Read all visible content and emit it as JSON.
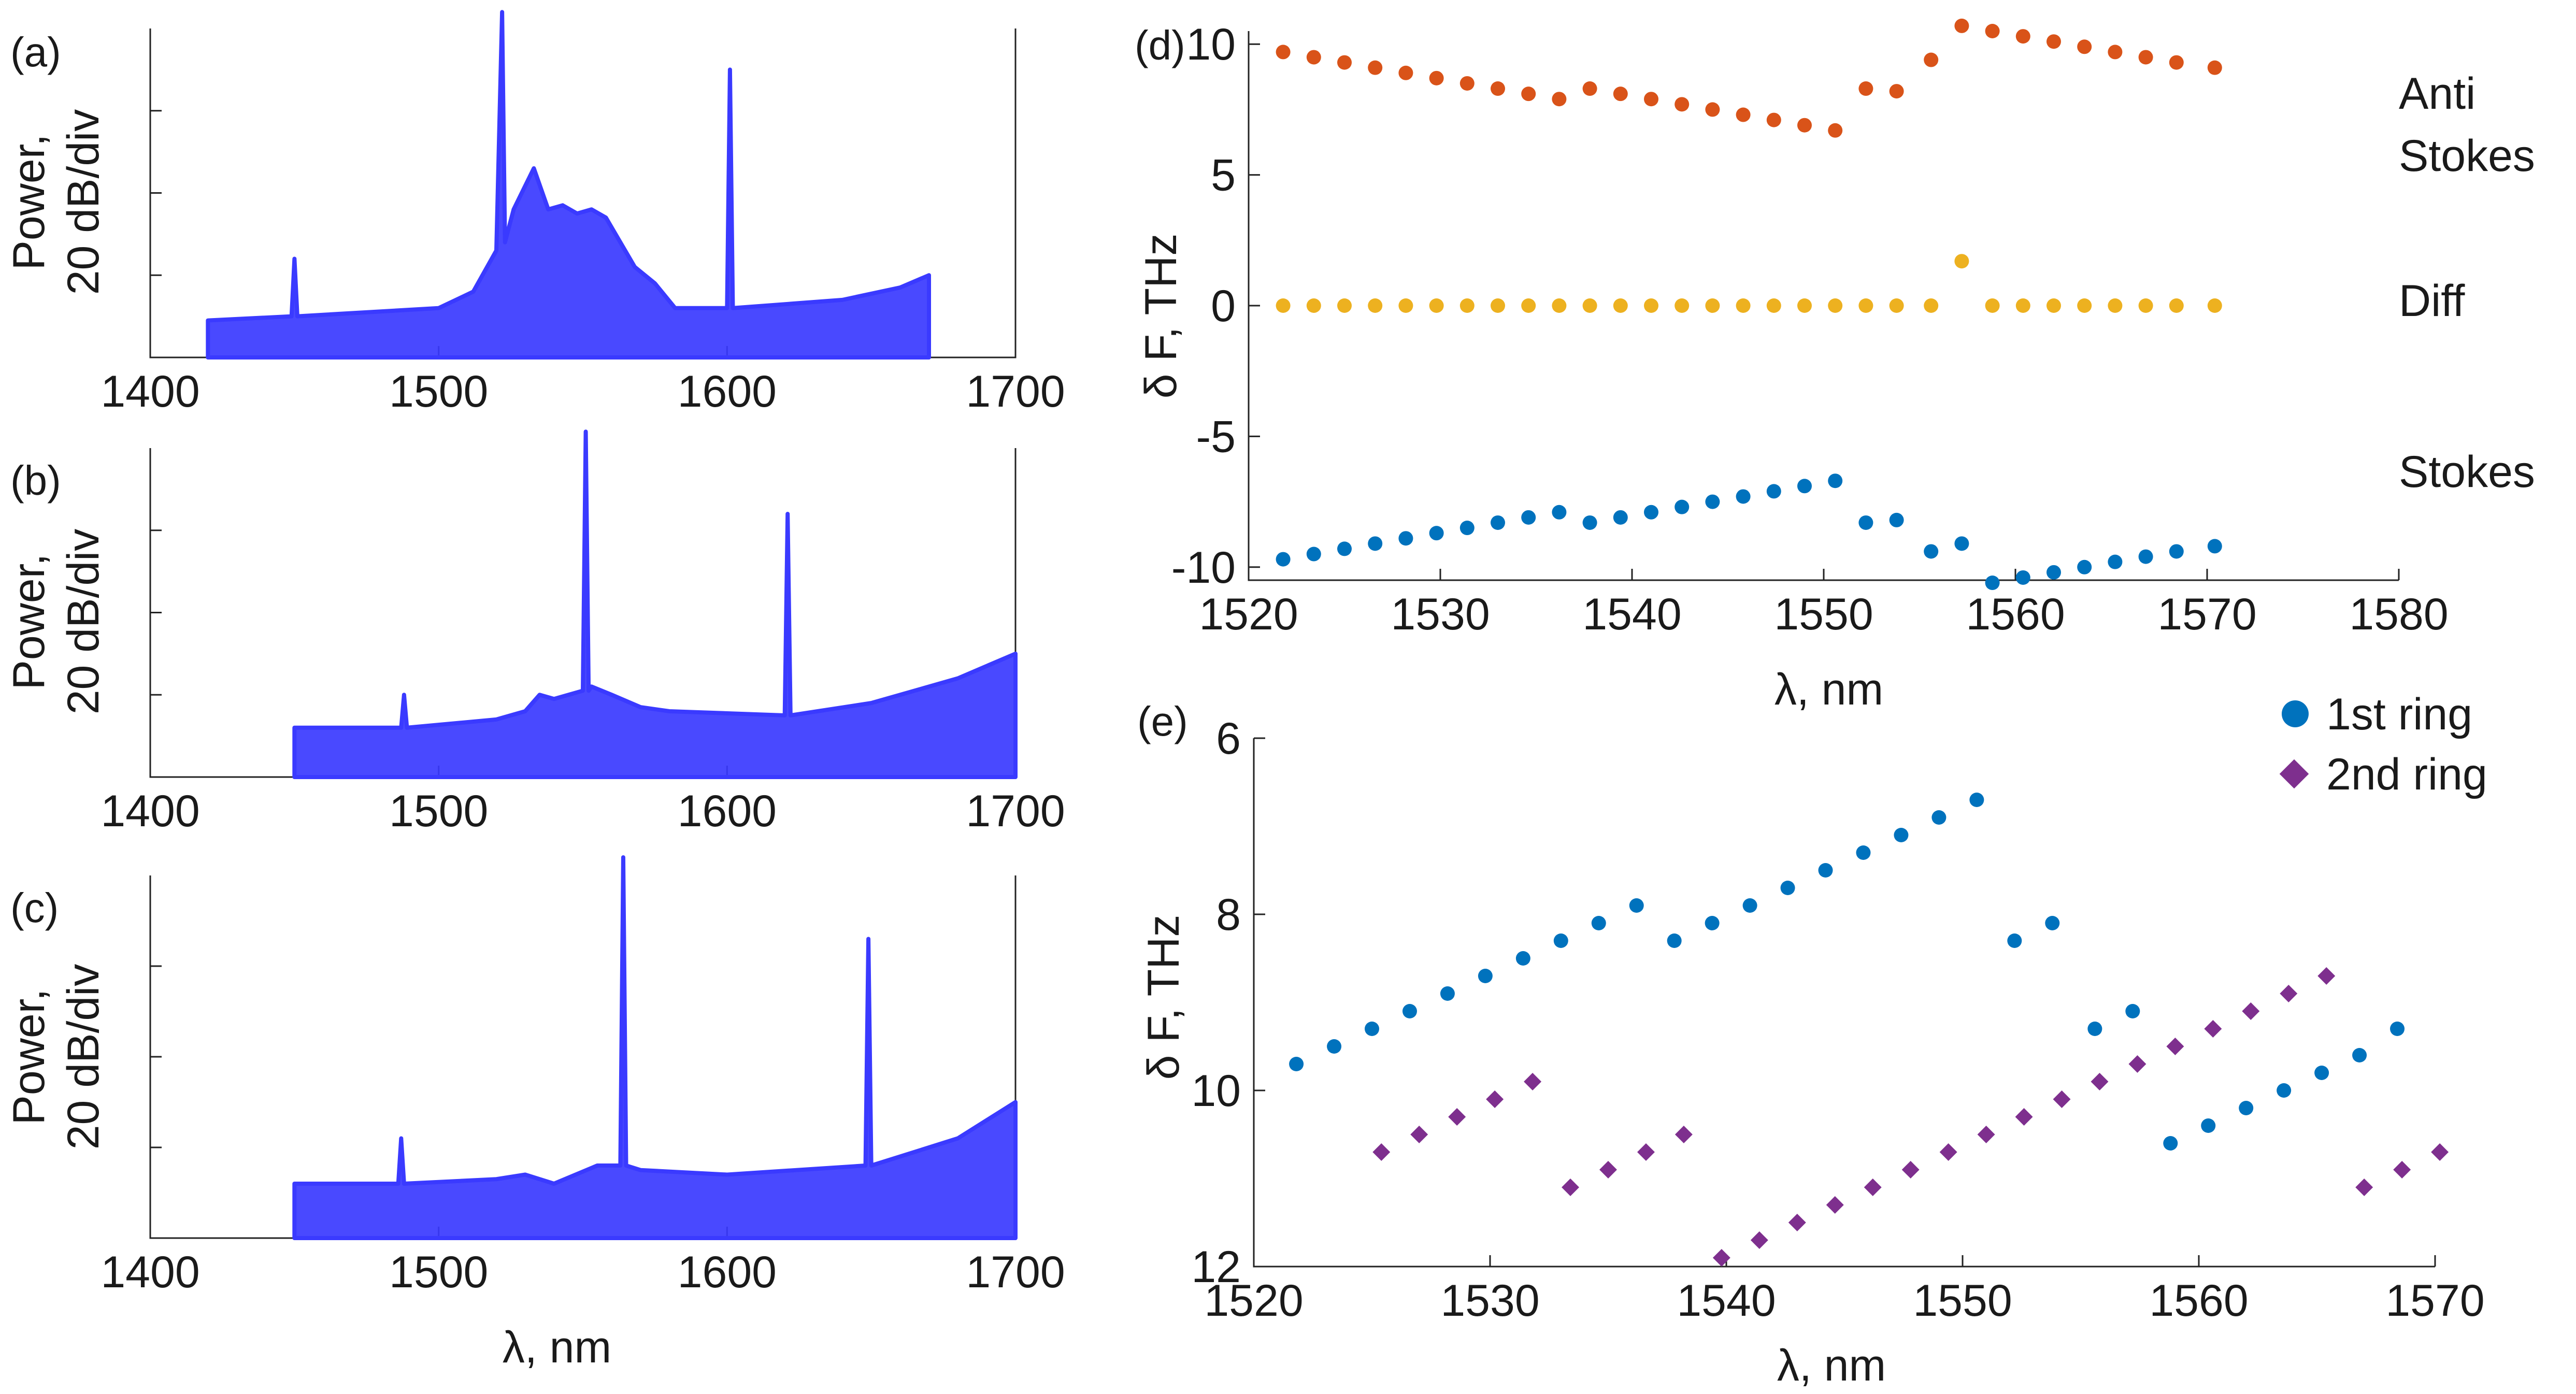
{
  "figure": {
    "panels_spectra": [
      {
        "letter": "(a)",
        "ylabel_line1": "Power,",
        "ylabel_line2": "20 dB/div",
        "xticks": [
          "1400",
          "1500",
          "1600",
          "1700"
        ],
        "xlabel": ""
      },
      {
        "letter": "(b)",
        "ylabel_line1": "Power,",
        "ylabel_line2": "20 dB/div",
        "xticks": [
          "1400",
          "1500",
          "1600",
          "1700"
        ],
        "xlabel": ""
      },
      {
        "letter": "(c)",
        "ylabel_line1": "Power,",
        "ylabel_line2": "20 dB/div",
        "xticks": [
          "1400",
          "1500",
          "1600",
          "1700"
        ],
        "xlabel": "λ, nm"
      }
    ],
    "panel_d": {
      "letter": "(d)",
      "ylabel": "δ F, THz",
      "xlabel": "λ, nm",
      "xticks": [
        "1520",
        "1530",
        "1540",
        "1550",
        "1560",
        "1570",
        "1580"
      ],
      "yticks": [
        "10",
        "5",
        "0",
        "-5",
        "-10"
      ],
      "side_labels": {
        "anti_1": "Anti",
        "anti_2": "Stokes",
        "diff": "Diff",
        "stokes": "Stokes"
      }
    },
    "panel_e": {
      "letter": "(e)",
      "ylabel": "δ F, THz",
      "xlabel": "λ, nm",
      "xticks": [
        "1520",
        "1530",
        "1540",
        "1550",
        "1560",
        "1570"
      ],
      "yticks": [
        "6",
        "8",
        "10",
        "12"
      ],
      "legend": {
        "first": "1st ring",
        "second": "2nd ring"
      }
    }
  },
  "colors": {
    "spectrum": "#3a3aff",
    "anti_stokes": "#d95319",
    "diff": "#edb120",
    "stokes": "#0072bd",
    "ring1": "#0072bd",
    "ring2": "#7e2f8e"
  },
  "chart_data": [
    {
      "type": "line",
      "title": "(a)",
      "xlabel": "",
      "ylabel": "Power, 20 dB/div",
      "xlim": [
        1400,
        1700
      ],
      "ylim_divs": [
        0,
        4
      ],
      "x_range_data": [
        1420,
        1670
      ],
      "series": [
        {
          "name": "spectrum",
          "x": [
            1420,
            1449,
            1450,
            1451,
            1500,
            1512,
            1520,
            1522,
            1523,
            1526,
            1533,
            1538,
            1543,
            1548,
            1553,
            1558,
            1563,
            1568,
            1575,
            1582,
            1600,
            1601,
            1602,
            1640,
            1660,
            1670
          ],
          "y": [
            0.45,
            0.5,
            1.2,
            0.5,
            0.6,
            0.8,
            1.3,
            4.2,
            1.4,
            1.8,
            2.3,
            1.8,
            1.85,
            1.75,
            1.8,
            1.7,
            1.4,
            1.1,
            0.9,
            0.6,
            0.6,
            3.5,
            0.6,
            0.7,
            0.85,
            1.0
          ]
        }
      ]
    },
    {
      "type": "line",
      "title": "(b)",
      "xlabel": "",
      "ylabel": "Power, 20 dB/div",
      "xlim": [
        1400,
        1700
      ],
      "ylim_divs": [
        0,
        4
      ],
      "x_range_data": [
        1450,
        1700
      ],
      "series": [
        {
          "name": "spectrum",
          "x": [
            1450,
            1487,
            1488,
            1489,
            1520,
            1530,
            1535,
            1540,
            1550,
            1551,
            1552,
            1553,
            1560,
            1570,
            1580,
            1620,
            1621,
            1622,
            1650,
            1680,
            1700
          ],
          "y": [
            0.6,
            0.6,
            1.0,
            0.6,
            0.7,
            0.8,
            1.0,
            0.95,
            1.05,
            4.2,
            1.05,
            1.1,
            1.0,
            0.85,
            0.8,
            0.75,
            3.2,
            0.75,
            0.9,
            1.2,
            1.5
          ]
        }
      ]
    },
    {
      "type": "line",
      "title": "(c)",
      "xlabel": "λ, nm",
      "ylabel": "Power, 20 dB/div",
      "xlim": [
        1400,
        1700
      ],
      "ylim_divs": [
        0,
        4
      ],
      "x_range_data": [
        1450,
        1700
      ],
      "series": [
        {
          "name": "spectrum",
          "x": [
            1450,
            1486,
            1487,
            1488,
            1520,
            1530,
            1540,
            1555,
            1563,
            1564,
            1565,
            1570,
            1600,
            1648,
            1649,
            1650,
            1680,
            1700
          ],
          "y": [
            0.6,
            0.6,
            1.1,
            0.6,
            0.65,
            0.7,
            0.6,
            0.8,
            0.8,
            4.2,
            0.8,
            0.75,
            0.7,
            0.8,
            3.3,
            0.8,
            1.1,
            1.5
          ]
        }
      ]
    },
    {
      "type": "scatter",
      "title": "(d)",
      "xlabel": "λ, nm",
      "ylabel": "δ F, THz",
      "xlim": [
        1520,
        1580
      ],
      "ylim": [
        -10.5,
        10.5
      ],
      "series": [
        {
          "name": "Anti Stokes",
          "x": [
            1521.8,
            1523.4,
            1525.0,
            1526.6,
            1528.2,
            1529.8,
            1531.4,
            1533.0,
            1534.6,
            1536.2,
            1537.8,
            1539.4,
            1541.0,
            1542.6,
            1544.2,
            1545.8,
            1547.4,
            1549.0,
            1550.6,
            1552.2,
            1553.8,
            1555.6,
            1557.2,
            1558.8,
            1560.4,
            1562.0,
            1563.6,
            1565.2,
            1566.8,
            1568.4,
            1570.4
          ],
          "y": [
            9.7,
            9.5,
            9.3,
            9.1,
            8.9,
            8.7,
            8.5,
            8.3,
            8.1,
            7.9,
            8.3,
            8.1,
            7.9,
            7.7,
            7.5,
            7.3,
            7.1,
            6.9,
            6.7,
            8.3,
            8.2,
            9.4,
            10.7,
            10.5,
            10.3,
            10.1,
            9.9,
            9.7,
            9.5,
            9.3,
            9.1
          ]
        },
        {
          "name": "Diff",
          "x": [
            1521.8,
            1523.4,
            1525.0,
            1526.6,
            1528.2,
            1529.8,
            1531.4,
            1533.0,
            1534.6,
            1536.2,
            1537.8,
            1539.4,
            1541.0,
            1542.6,
            1544.2,
            1545.8,
            1547.4,
            1549.0,
            1550.6,
            1552.2,
            1553.8,
            1555.6,
            1557.2,
            1558.8,
            1560.4,
            1562.0,
            1563.6,
            1565.2,
            1566.8,
            1568.4,
            1570.4
          ],
          "y": [
            0,
            0,
            0,
            0,
            0,
            0,
            0,
            0,
            0,
            0,
            0,
            0,
            0,
            0,
            0,
            0,
            0,
            0,
            0,
            0,
            0,
            0,
            1.7,
            0,
            0,
            0,
            0,
            0,
            0,
            0,
            0
          ]
        },
        {
          "name": "Stokes",
          "x": [
            1521.8,
            1523.4,
            1525.0,
            1526.6,
            1528.2,
            1529.8,
            1531.4,
            1533.0,
            1534.6,
            1536.2,
            1537.8,
            1539.4,
            1541.0,
            1542.6,
            1544.2,
            1545.8,
            1547.4,
            1549.0,
            1550.6,
            1552.2,
            1553.8,
            1555.6,
            1557.2,
            1558.8,
            1560.4,
            1562.0,
            1563.6,
            1565.2,
            1566.8,
            1568.4,
            1570.4
          ],
          "y": [
            -9.7,
            -9.5,
            -9.3,
            -9.1,
            -8.9,
            -8.7,
            -8.5,
            -8.3,
            -8.1,
            -7.9,
            -8.3,
            -8.1,
            -7.9,
            -7.7,
            -7.5,
            -7.3,
            -7.1,
            -6.9,
            -6.7,
            -8.3,
            -8.2,
            -9.4,
            -9.1,
            -10.6,
            -10.4,
            -10.2,
            -10.0,
            -9.8,
            -9.6,
            -9.4,
            -9.2
          ]
        }
      ],
      "side_labels": [
        "Anti Stokes",
        "Diff",
        "Stokes"
      ]
    },
    {
      "type": "scatter",
      "title": "(e)",
      "xlabel": "λ, nm",
      "ylabel": "δ F, THz",
      "xlim": [
        1520,
        1570
      ],
      "ylim": [
        12,
        6
      ],
      "y_reversed": true,
      "series": [
        {
          "name": "1st ring",
          "x": [
            1521.8,
            1523.4,
            1525.0,
            1526.6,
            1528.2,
            1529.8,
            1531.4,
            1533.0,
            1534.6,
            1536.2,
            1537.8,
            1539.4,
            1541.0,
            1542.6,
            1544.2,
            1545.8,
            1547.4,
            1549.0,
            1550.6,
            1552.2,
            1553.8,
            1555.6,
            1557.2,
            1558.8,
            1560.4,
            1562.0,
            1563.6,
            1565.2,
            1566.8,
            1568.4
          ],
          "y": [
            9.7,
            9.5,
            9.3,
            9.1,
            8.9,
            8.7,
            8.5,
            8.3,
            8.1,
            7.9,
            8.3,
            8.1,
            7.9,
            7.7,
            7.5,
            7.3,
            7.1,
            6.9,
            6.7,
            8.3,
            8.1,
            9.3,
            9.1,
            10.6,
            10.4,
            10.2,
            10.0,
            9.8,
            9.6,
            9.3
          ]
        },
        {
          "name": "2nd ring",
          "x": [
            1525.4,
            1527.0,
            1528.6,
            1530.2,
            1531.8,
            1533.4,
            1535.0,
            1536.6,
            1538.2,
            1539.8,
            1541.4,
            1543.0,
            1544.6,
            1546.2,
            1547.8,
            1549.4,
            1551.0,
            1552.6,
            1554.2,
            1555.8,
            1557.4,
            1559.0,
            1560.6,
            1562.2,
            1563.8,
            1565.4,
            1567.0,
            1568.6,
            1570.2
          ],
          "y": [
            10.7,
            10.5,
            10.3,
            10.1,
            9.9,
            11.1,
            10.9,
            10.7,
            10.5,
            11.9,
            11.7,
            11.5,
            11.3,
            11.1,
            10.9,
            10.7,
            10.5,
            10.3,
            10.1,
            9.9,
            9.7,
            9.5,
            9.3,
            9.1,
            8.9,
            8.7,
            11.1,
            10.9,
            10.7
          ]
        }
      ],
      "legend": [
        "1st ring",
        "2nd ring"
      ]
    }
  ]
}
